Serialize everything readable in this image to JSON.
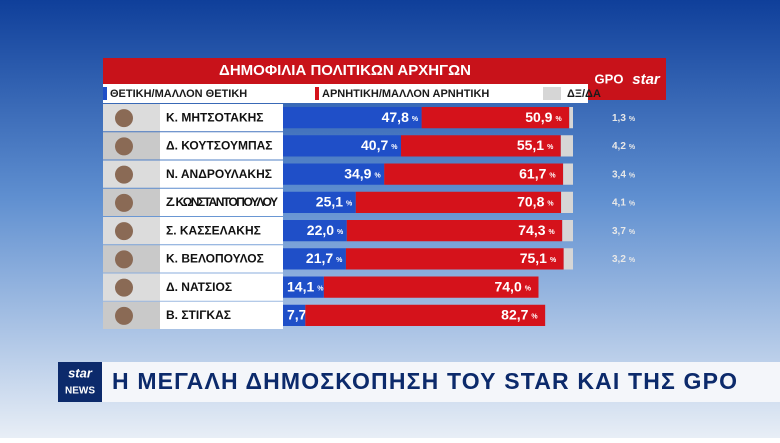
{
  "chart_data": {
    "type": "bar",
    "orientation": "horizontal",
    "stacked": true,
    "title": "ΔΗΜΟΦΙΛΙΑ ΠΟΛΙΤΙΚΩΝ ΑΡΧΗΓΩΝ",
    "categories": [
      "Κ. ΜΗΤΣΟΤΑΚΗΣ",
      "Δ. ΚΟΥΤΣΟΥΜΠΑΣ",
      "Ν. ΑΝΔΡΟΥΛΑΚΗΣ",
      "Ζ. ΚΩΝΣΤΑΝΤΟΠΟΥΛΟΥ",
      "Σ. ΚΑΣΣΕΛΑΚΗΣ",
      "Κ. ΒΕΛΟΠΟΥΛΟΣ",
      "Δ. ΝΑΤΣΙΟΣ",
      "Β. ΣΤΙΓΚΑΣ"
    ],
    "unit": "%",
    "xlim": [
      0,
      100
    ],
    "series": [
      {
        "name": "ΘΕΤΙΚΗ/ΜΑΛΛΟΝ ΘΕΤΙΚΗ",
        "color": "#1f4fc8",
        "values": [
          47.8,
          40.7,
          34.9,
          25.1,
          22.0,
          21.7,
          14.1,
          7.7
        ],
        "value_labels": [
          "47,8",
          "40,7",
          "34,9",
          "25,1",
          "22,0",
          "21,7",
          "14,1",
          "7,7"
        ]
      },
      {
        "name": "ΑΡΝΗΤΙΚΗ/ΜΑΛΛΟΝ ΑΡΝΗΤΙΚΗ",
        "color": "#d5121b",
        "values": [
          50.9,
          55.1,
          61.7,
          70.8,
          74.3,
          75.1,
          74.0,
          82.7
        ],
        "value_labels": [
          "50,9",
          "55,1",
          "61,7",
          "70,8",
          "74,3",
          "75,1",
          "74,0",
          "82,7"
        ]
      },
      {
        "name": "ΔΞ/ΔΑ",
        "color": "#d6d6d6",
        "values": [
          1.3,
          4.2,
          3.4,
          4.1,
          3.7,
          3.2,
          null,
          null
        ],
        "value_labels": [
          "1,3",
          "4,2",
          "3,4",
          "4,1",
          "3,7",
          "3,2",
          null,
          null
        ]
      }
    ]
  },
  "logo": {
    "left": "GPO",
    "right": "star"
  },
  "banner": {
    "logo_top": "star",
    "logo_bottom": "NEWS",
    "text": "Η ΜΕΓΑΛΗ ΔΗΜΟΣΚΟΠΗΣΗ ΤΟΥ STAR ΚΑΙ ΤΗΣ GPO"
  }
}
